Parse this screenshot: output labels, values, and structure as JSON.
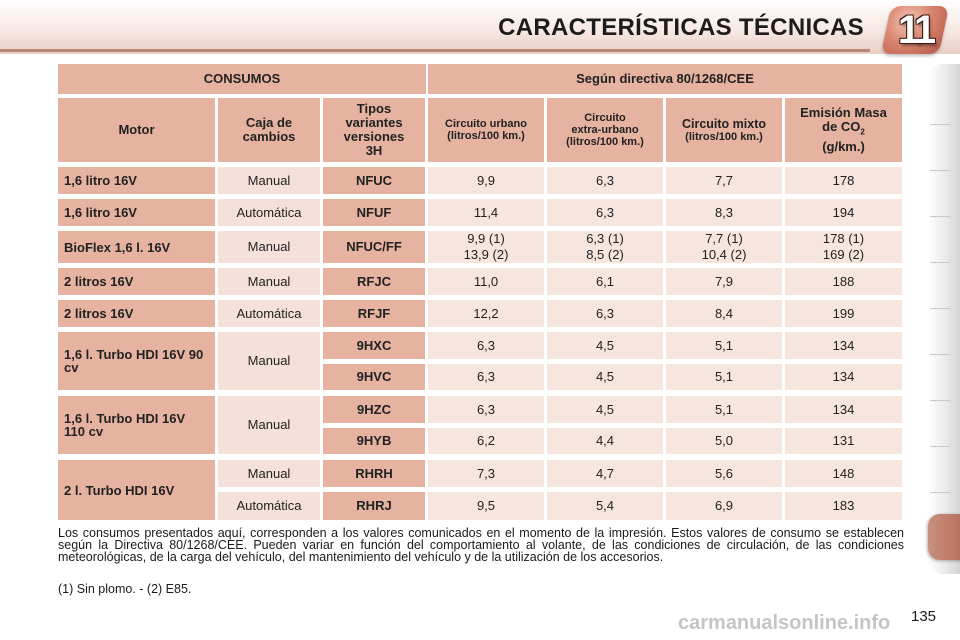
{
  "page": {
    "title": "CARACTERÍSTICAS TÉCNICAS",
    "chapter": "11",
    "page_number": "135",
    "watermark": "carmanualsonline.info"
  },
  "table": {
    "group_headers": {
      "left": "CONSUMOS",
      "right": "Según directiva 80/1268/CEE"
    },
    "columns": {
      "motor": "Motor",
      "caja": "Caja de cambios",
      "tipos": "Tipos variantes versiones 3H",
      "urbano_line1": "Circuito urbano",
      "urbano_line2": "(litros/100 km.)",
      "extra_line1": "Circuito",
      "extra_line2": "extra-urbano",
      "extra_line3": "(litros/100 km.)",
      "mixto_line1": "Circuito mixto",
      "mixto_line2": "(litros/100 km.)",
      "emision_line1": "Emisión Masa",
      "emision_line2": "de CO",
      "emision_sub": "2",
      "emision_line3": "(g/km.)"
    },
    "motors": {
      "m1": "1,6 litro 16V",
      "m2": "1,6 litro 16V",
      "m3": "BioFlex 1,6 l. 16V",
      "m4": "2 litros 16V",
      "m5": "2 litros 16V",
      "m6": "1,6 l. Turbo HDI 16V 90 cv",
      "m7": "1,6 l. Turbo HDI 16V 110 cv",
      "m8": "2 l. Turbo HDI 16V"
    },
    "gearboxes": {
      "g1": "Manual",
      "g2": "Automática",
      "g3": "Manual",
      "g4": "Manual",
      "g5": "Automática",
      "g6": "Manual",
      "g7": "Manual",
      "g8a": "Manual",
      "g8b": "Automática"
    },
    "rows": [
      {
        "code": "NFUC",
        "urbano": "9,9",
        "extra": "6,3",
        "mixto": "7,7",
        "co2": "178"
      },
      {
        "code": "NFUF",
        "urbano": "11,4",
        "extra": "6,3",
        "mixto": "8,3",
        "co2": "194"
      },
      {
        "code": "NFUC/FF",
        "urbano": "9,9 (1)",
        "urbano2": "13,9 (2)",
        "extra": "6,3 (1)",
        "extra2": "8,5 (2)",
        "mixto": "7,7 (1)",
        "mixto2": "10,4 (2)",
        "co2": "178 (1)",
        "co22": "169 (2)"
      },
      {
        "code": "RFJC",
        "urbano": "11,0",
        "extra": "6,1",
        "mixto": "7,9",
        "co2": "188"
      },
      {
        "code": "RFJF",
        "urbano": "12,2",
        "extra": "6,3",
        "mixto": "8,4",
        "co2": "199"
      },
      {
        "code": "9HXC",
        "urbano": "6,3",
        "extra": "4,5",
        "mixto": "5,1",
        "co2": "134"
      },
      {
        "code": "9HVC",
        "urbano": "6,3",
        "extra": "4,5",
        "mixto": "5,1",
        "co2": "134"
      },
      {
        "code": "9HZC",
        "urbano": "6,3",
        "extra": "4,5",
        "mixto": "5,1",
        "co2": "134"
      },
      {
        "code": "9HYB",
        "urbano": "6,2",
        "extra": "4,4",
        "mixto": "5,0",
        "co2": "131"
      },
      {
        "code": "RHRH",
        "urbano": "7,3",
        "extra": "4,7",
        "mixto": "5,6",
        "co2": "148"
      },
      {
        "code": "RHRJ",
        "urbano": "9,5",
        "extra": "5,4",
        "mixto": "6,9",
        "co2": "183"
      }
    ]
  },
  "notes": {
    "paragraph": "Los consumos presentados aquí, corresponden a los valores comunicados en el momento de la impresión. Estos valores de consumo se establecen según la Directiva 80/1268/CEE. Pueden variar en función del comportamiento al volante, de las condiciones de circulación, de las condiciones meteorológicas, de la carga del vehículo, del mantenimiento del vehículo y de la utilización de los accesorios.",
    "footnote": "(1) Sin plomo. - (2) E85."
  }
}
